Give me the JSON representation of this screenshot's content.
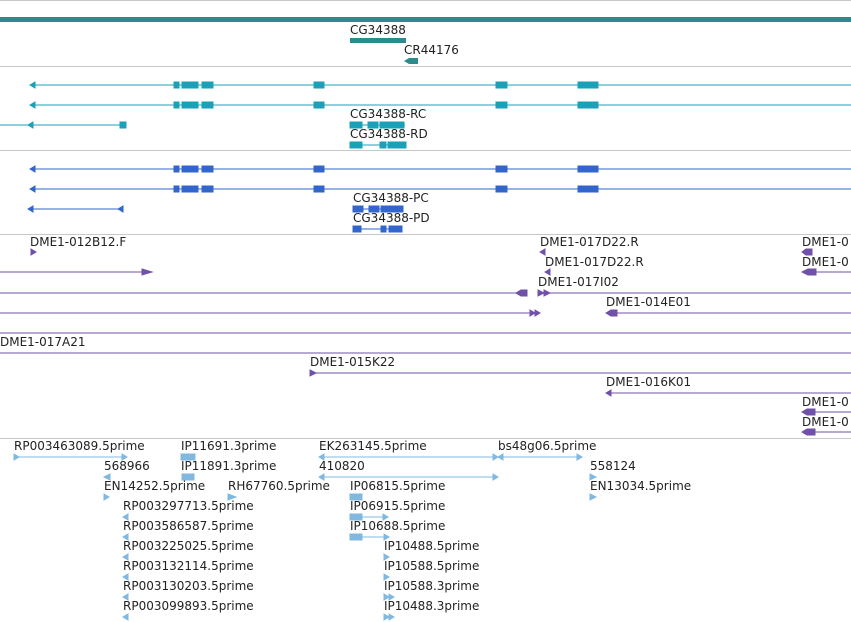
{
  "colors": {
    "gene": "#2e8b8b",
    "transcript": "#1aa0b8",
    "protein": "#3366cc",
    "clone": "#7050a8",
    "est": "#80b8e0",
    "separator": "#c8c8c8"
  },
  "tracks": {
    "genes": {
      "labels": [
        "CG34388",
        "CR44176"
      ]
    },
    "transcripts": {
      "labels": [
        "CG34388-RC",
        "CG34388-RD"
      ]
    },
    "proteins": {
      "labels": [
        "CG34388-PC",
        "CG34388-PD"
      ]
    },
    "clones": {
      "labels": [
        "DME1-012B12.F",
        "DME1-017D22.R",
        "DME1-0",
        "DME1-017D22.R",
        "DME1-0",
        "DME1-017I02",
        "DME1-014E01",
        "DME1-017A21",
        "DME1-015K22",
        "DME1-016K01",
        "DME1-0",
        "DME1-0"
      ]
    },
    "ests": {
      "labels": [
        "RP003463089.5prime",
        "IP11691.3prime",
        "EK263145.5prime",
        "bs48g06.5prime",
        "568966",
        "IP11891.3prime",
        "410820",
        "558124",
        "EN14252.5prime",
        "RH67760.5prime",
        "IP06815.5prime",
        "EN13034.5prime",
        "RP003297713.5prime",
        "IP06915.5prime",
        "RP003586587.5prime",
        "IP10688.5prime",
        "RP003225025.5prime",
        "IP10488.5prime",
        "RP003132114.5prime",
        "IP10588.5prime",
        "RP003130203.5prime",
        "IP10588.3prime",
        "RP003099893.5prime",
        "IP10488.3prime"
      ]
    }
  }
}
